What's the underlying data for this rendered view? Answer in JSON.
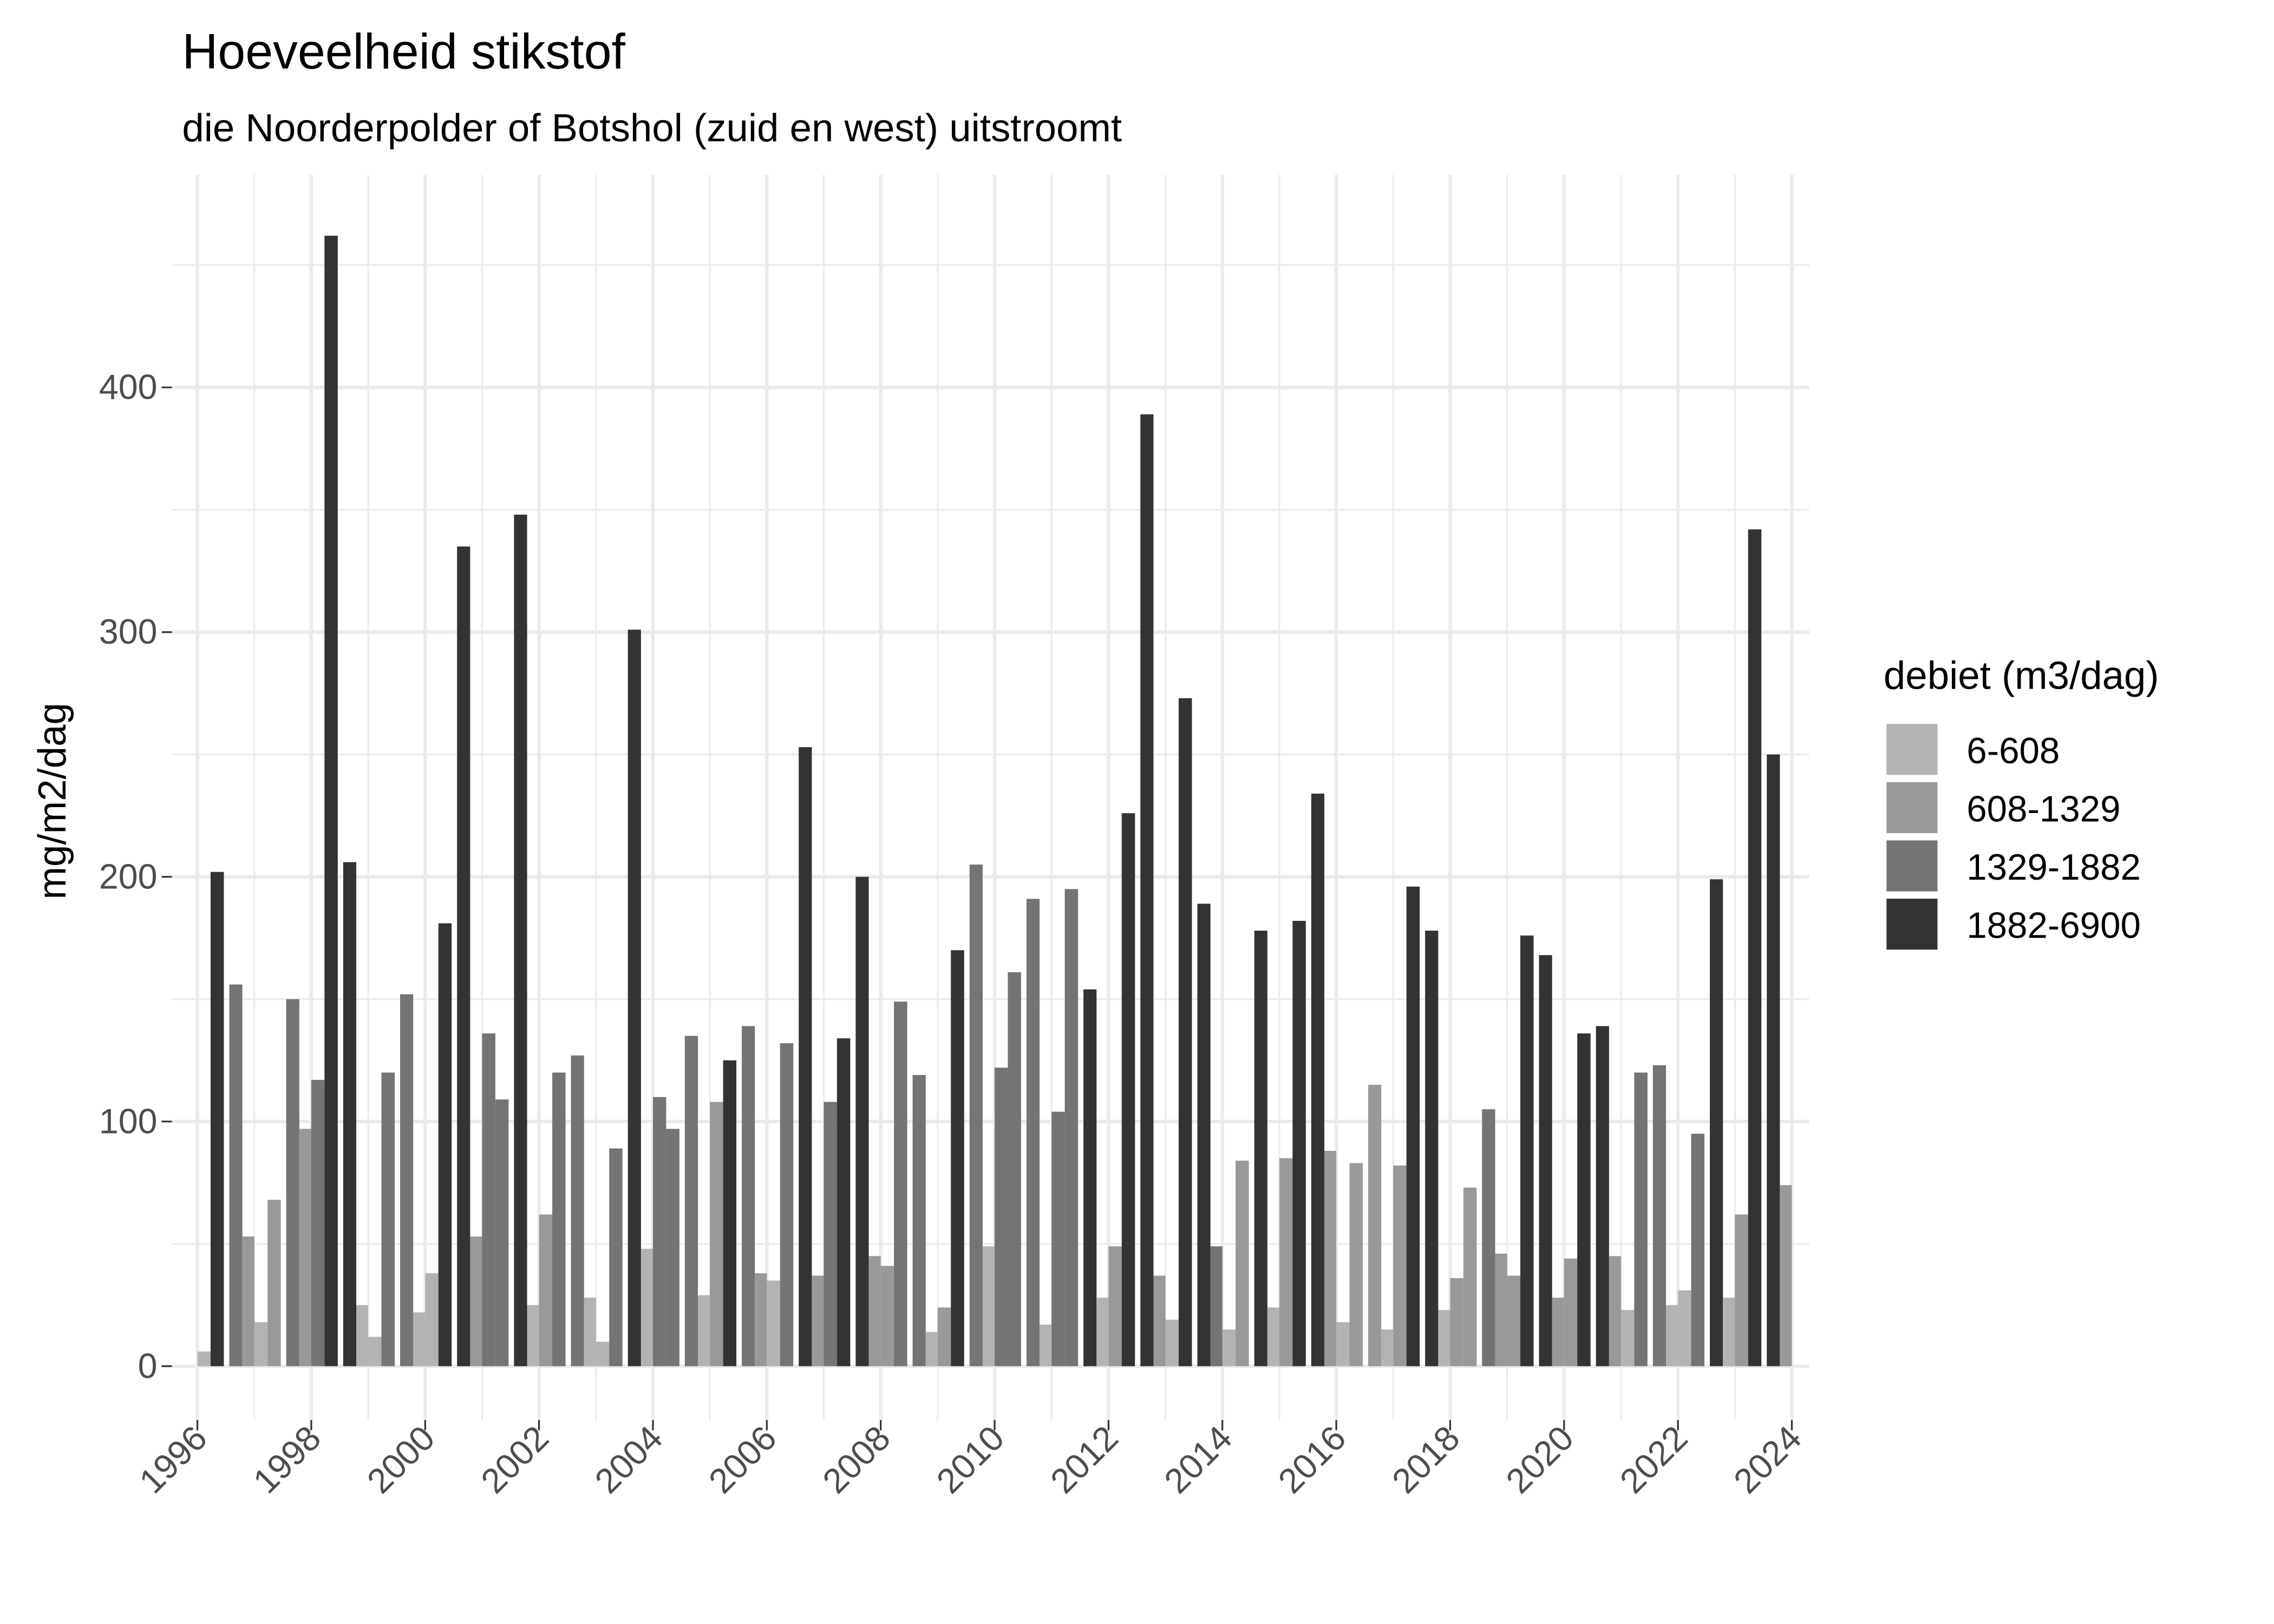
{
  "chart_data": {
    "type": "bar",
    "title": "Hoeveelheid stikstof",
    "subtitle": "die Noorderpolder of Botshol (zuid en west) uitstroomt",
    "xlabel": "",
    "ylabel": "mg/m2/dag",
    "xlim": [
      1996,
      2024
    ],
    "ylim": [
      0,
      470
    ],
    "x_ticks": [
      "1996",
      "1998",
      "2000",
      "2002",
      "2004",
      "2006",
      "2008",
      "2010",
      "2012",
      "2014",
      "2016",
      "2018",
      "2020",
      "2022",
      "2024"
    ],
    "y_ticks": [
      0,
      100,
      200,
      300,
      400
    ],
    "grid": true,
    "legend": {
      "title": "debiet (m3/dag)",
      "placement": "right",
      "entries": [
        {
          "label": "6-608",
          "color": "#B3B3B3"
        },
        {
          "label": "608-1329",
          "color": "#999999"
        },
        {
          "label": "1329-1882",
          "color": "#747474"
        },
        {
          "label": "1882-6900",
          "color": "#333333"
        }
      ]
    },
    "columns": [
      "quarter",
      "debiet",
      "value"
    ],
    "bars": [
      [
        "1996-Q1",
        "6-608",
        6
      ],
      [
        "1996-Q2",
        "1882-6900",
        202
      ],
      [
        "1996-Q3",
        "1329-1882",
        156
      ],
      [
        "1996-Q4",
        "608-1329",
        53
      ],
      [
        "1997-Q1",
        "6-608",
        18
      ],
      [
        "1997-Q2",
        "608-1329",
        68
      ],
      [
        "1997-Q3",
        "1329-1882",
        150
      ],
      [
        "1997-Q4",
        "608-1329",
        97
      ],
      [
        "1998-Q1",
        "1329-1882",
        117
      ],
      [
        "1998-Q2",
        "1882-6900",
        462
      ],
      [
        "1998-Q3",
        "1882-6900",
        206
      ],
      [
        "1998-Q4",
        "6-608",
        25
      ],
      [
        "1999-Q1",
        "6-608",
        12
      ],
      [
        "1999-Q2",
        "1329-1882",
        120
      ],
      [
        "1999-Q3",
        "1329-1882",
        152
      ],
      [
        "1999-Q4",
        "6-608",
        22
      ],
      [
        "2000-Q1",
        "6-608",
        38
      ],
      [
        "2000-Q2",
        "1882-6900",
        181
      ],
      [
        "2000-Q3",
        "1882-6900",
        335
      ],
      [
        "2000-Q4",
        "608-1329",
        53
      ],
      [
        "2001-Q1",
        "1329-1882",
        136
      ],
      [
        "2001-Q2",
        "1329-1882",
        109
      ],
      [
        "2001-Q3",
        "1882-6900",
        348
      ],
      [
        "2001-Q4",
        "6-608",
        25
      ],
      [
        "2002-Q1",
        "608-1329",
        62
      ],
      [
        "2002-Q2",
        "1329-1882",
        120
      ],
      [
        "2002-Q3",
        "1329-1882",
        127
      ],
      [
        "2002-Q4",
        "6-608",
        28
      ],
      [
        "2003-Q1",
        "6-608",
        10
      ],
      [
        "2003-Q2",
        "1329-1882",
        89
      ],
      [
        "2003-Q3",
        "1882-6900",
        301
      ],
      [
        "2003-Q4",
        "6-608",
        48
      ],
      [
        "2004-Q1",
        "1329-1882",
        110
      ],
      [
        "2004-Q2",
        "1329-1882",
        97
      ],
      [
        "2004-Q3",
        "1329-1882",
        135
      ],
      [
        "2004-Q4",
        "6-608",
        29
      ],
      [
        "2005-Q1",
        "608-1329",
        108
      ],
      [
        "2005-Q2",
        "1882-6900",
        125
      ],
      [
        "2005-Q3",
        "1329-1882",
        139
      ],
      [
        "2005-Q4",
        "608-1329",
        38
      ],
      [
        "2006-Q1",
        "6-608",
        35
      ],
      [
        "2006-Q2",
        "1329-1882",
        132
      ],
      [
        "2006-Q3",
        "1882-6900",
        253
      ],
      [
        "2006-Q4",
        "608-1329",
        37
      ],
      [
        "2007-Q1",
        "1329-1882",
        108
      ],
      [
        "2007-Q2",
        "1882-6900",
        134
      ],
      [
        "2007-Q3",
        "1882-6900",
        200
      ],
      [
        "2007-Q4",
        "608-1329",
        45
      ],
      [
        "2008-Q1",
        "608-1329",
        41
      ],
      [
        "2008-Q2",
        "1329-1882",
        149
      ],
      [
        "2008-Q3",
        "1329-1882",
        119
      ],
      [
        "2008-Q4",
        "6-608",
        14
      ],
      [
        "2009-Q1",
        "608-1329",
        24
      ],
      [
        "2009-Q2",
        "1882-6900",
        170
      ],
      [
        "2009-Q3",
        "1329-1882",
        205
      ],
      [
        "2009-Q4",
        "6-608",
        49
      ],
      [
        "2010-Q1",
        "1329-1882",
        122
      ],
      [
        "2010-Q2",
        "1329-1882",
        161
      ],
      [
        "2010-Q3",
        "1329-1882",
        191
      ],
      [
        "2010-Q4",
        "6-608",
        17
      ],
      [
        "2011-Q1",
        "1329-1882",
        104
      ],
      [
        "2011-Q2",
        "1329-1882",
        195
      ],
      [
        "2011-Q3",
        "1882-6900",
        154
      ],
      [
        "2011-Q4",
        "6-608",
        28
      ],
      [
        "2012-Q1",
        "608-1329",
        49
      ],
      [
        "2012-Q2",
        "1882-6900",
        226
      ],
      [
        "2012-Q3",
        "1882-6900",
        389
      ],
      [
        "2012-Q4",
        "608-1329",
        37
      ],
      [
        "2013-Q1",
        "6-608",
        19
      ],
      [
        "2013-Q2",
        "1882-6900",
        273
      ],
      [
        "2013-Q3",
        "1882-6900",
        189
      ],
      [
        "2013-Q4",
        "1329-1882",
        49
      ],
      [
        "2014-Q1",
        "6-608",
        15
      ],
      [
        "2014-Q2",
        "608-1329",
        84
      ],
      [
        "2014-Q3",
        "1882-6900",
        178
      ],
      [
        "2014-Q4",
        "6-608",
        24
      ],
      [
        "2015-Q1",
        "608-1329",
        85
      ],
      [
        "2015-Q2",
        "1882-6900",
        182
      ],
      [
        "2015-Q3",
        "1882-6900",
        234
      ],
      [
        "2015-Q4",
        "608-1329",
        88
      ],
      [
        "2016-Q1",
        "6-608",
        18
      ],
      [
        "2016-Q2",
        "608-1329",
        83
      ],
      [
        "2016-Q3",
        "608-1329",
        115
      ],
      [
        "2016-Q4",
        "6-608",
        15
      ],
      [
        "2017-Q1",
        "608-1329",
        82
      ],
      [
        "2017-Q2",
        "1882-6900",
        196
      ],
      [
        "2017-Q3",
        "1882-6900",
        178
      ],
      [
        "2017-Q4",
        "6-608",
        23
      ],
      [
        "2018-Q1",
        "608-1329",
        36
      ],
      [
        "2018-Q2",
        "608-1329",
        73
      ],
      [
        "2018-Q3",
        "1329-1882",
        105
      ],
      [
        "2018-Q4",
        "608-1329",
        46
      ],
      [
        "2019-Q1",
        "608-1329",
        37
      ],
      [
        "2019-Q2",
        "1882-6900",
        176
      ],
      [
        "2019-Q3",
        "1882-6900",
        168
      ],
      [
        "2019-Q4",
        "608-1329",
        28
      ],
      [
        "2020-Q1",
        "608-1329",
        44
      ],
      [
        "2020-Q2",
        "1882-6900",
        136
      ],
      [
        "2020-Q3",
        "1882-6900",
        139
      ],
      [
        "2020-Q4",
        "608-1329",
        45
      ],
      [
        "2021-Q1",
        "6-608",
        23
      ],
      [
        "2021-Q2",
        "1329-1882",
        120
      ],
      [
        "2021-Q3",
        "1329-1882",
        123
      ],
      [
        "2021-Q4",
        "6-608",
        25
      ],
      [
        "2022-Q1",
        "6-608",
        31
      ],
      [
        "2022-Q2",
        "1329-1882",
        95
      ],
      [
        "2022-Q3",
        "1882-6900",
        199
      ],
      [
        "2022-Q4",
        "6-608",
        28
      ],
      [
        "2023-Q1",
        "608-1329",
        62
      ],
      [
        "2023-Q2",
        "1882-6900",
        342
      ],
      [
        "2023-Q3",
        "1882-6900",
        250
      ],
      [
        "2023-Q4",
        "608-1329",
        74
      ]
    ]
  }
}
